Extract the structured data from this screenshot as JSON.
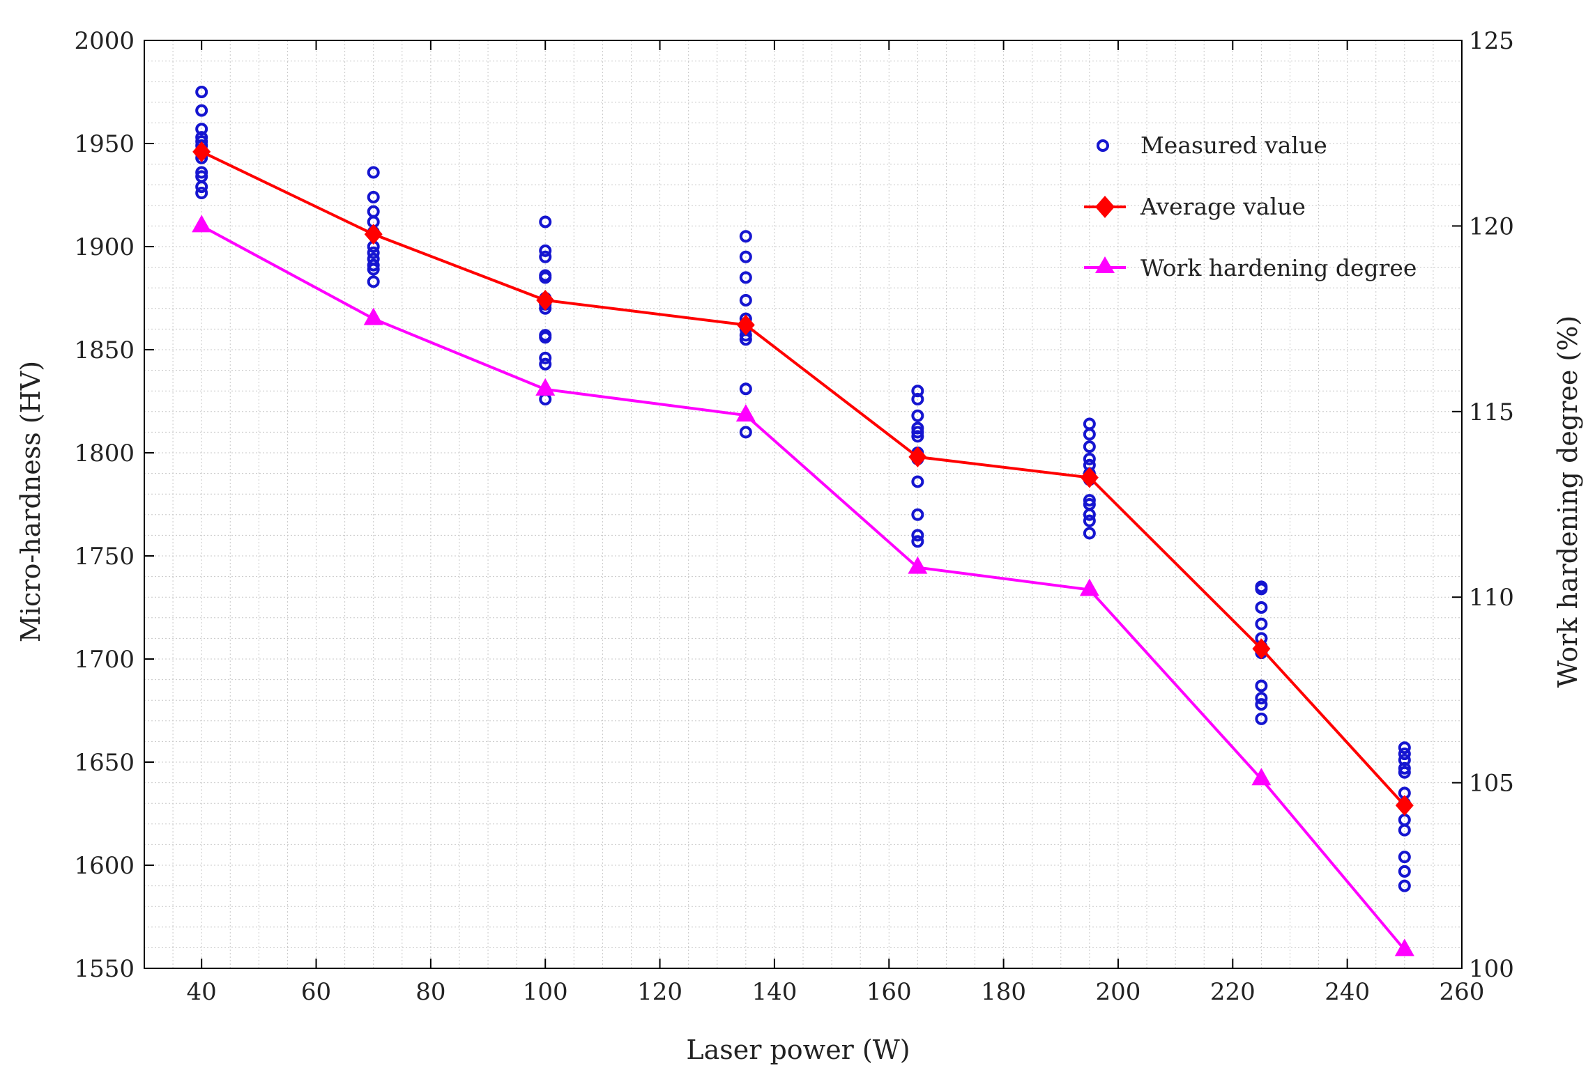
{
  "chart_data": {
    "type": "line",
    "title": "",
    "xlabel": "Laser power (W)",
    "ylabel": "Micro-hardness (HV)",
    "ylabel_right": "Work hardening degree (%)",
    "xlim": [
      30,
      260
    ],
    "ylim": [
      1550,
      2000
    ],
    "ylim_right": [
      100,
      125
    ],
    "xticks": [
      40,
      60,
      80,
      100,
      120,
      140,
      160,
      180,
      200,
      220,
      240,
      260
    ],
    "yticks": [
      1550,
      1600,
      1650,
      1700,
      1750,
      1800,
      1850,
      1900,
      1950,
      2000
    ],
    "yticks_right": [
      100,
      105,
      110,
      115,
      120,
      125
    ],
    "grid": true,
    "legend_position": "top-right",
    "colors": {
      "measured": "#1515d0",
      "average": "#ff0000",
      "hardening": "#ff00ff",
      "grid": "#c8c8c8"
    },
    "series": [
      {
        "name": "Measured value",
        "kind": "scatter",
        "axis": "left",
        "groups": [
          {
            "x": 40,
            "values": [
              1975,
              1966,
              1957,
              1953,
              1951,
              1949,
              1945,
              1943,
              1936,
              1934,
              1929,
              1926
            ]
          },
          {
            "x": 70,
            "values": [
              1936,
              1924,
              1917,
              1912,
              1907,
              1900,
              1897,
              1894,
              1891,
              1889,
              1883
            ]
          },
          {
            "x": 100,
            "values": [
              1912,
              1898,
              1895,
              1886,
              1885,
              1875,
              1872,
              1870,
              1857,
              1856,
              1846,
              1843,
              1826
            ]
          },
          {
            "x": 135,
            "values": [
              1905,
              1895,
              1885,
              1874,
              1865,
              1862,
              1860,
              1857,
              1855,
              1831,
              1810
            ]
          },
          {
            "x": 165,
            "values": [
              1830,
              1826,
              1818,
              1812,
              1810,
              1808,
              1800,
              1797,
              1786,
              1770,
              1760,
              1757
            ]
          },
          {
            "x": 195,
            "values": [
              1814,
              1809,
              1803,
              1797,
              1794,
              1790,
              1787,
              1777,
              1775,
              1770,
              1767,
              1761
            ]
          },
          {
            "x": 225,
            "values": [
              1735,
              1734,
              1725,
              1717,
              1710,
              1706,
              1703,
              1687,
              1681,
              1678,
              1671
            ]
          },
          {
            "x": 250,
            "values": [
              1657,
              1654,
              1651,
              1647,
              1645,
              1635,
              1630,
              1622,
              1617,
              1604,
              1597,
              1590
            ]
          }
        ]
      },
      {
        "name": "Average value",
        "kind": "line",
        "marker": "diamond",
        "axis": "left",
        "x": [
          40,
          70,
          100,
          135,
          165,
          195,
          225,
          250
        ],
        "values": [
          1946,
          1906,
          1874,
          1862,
          1798,
          1788,
          1705,
          1629
        ]
      },
      {
        "name": "Work hardening degree",
        "kind": "line",
        "marker": "triangle",
        "axis": "right",
        "x": [
          40,
          70,
          100,
          135,
          165,
          195,
          225,
          250
        ],
        "values": [
          120.0,
          117.5,
          115.6,
          114.9,
          110.8,
          110.2,
          105.1,
          100.5
        ]
      }
    ]
  }
}
